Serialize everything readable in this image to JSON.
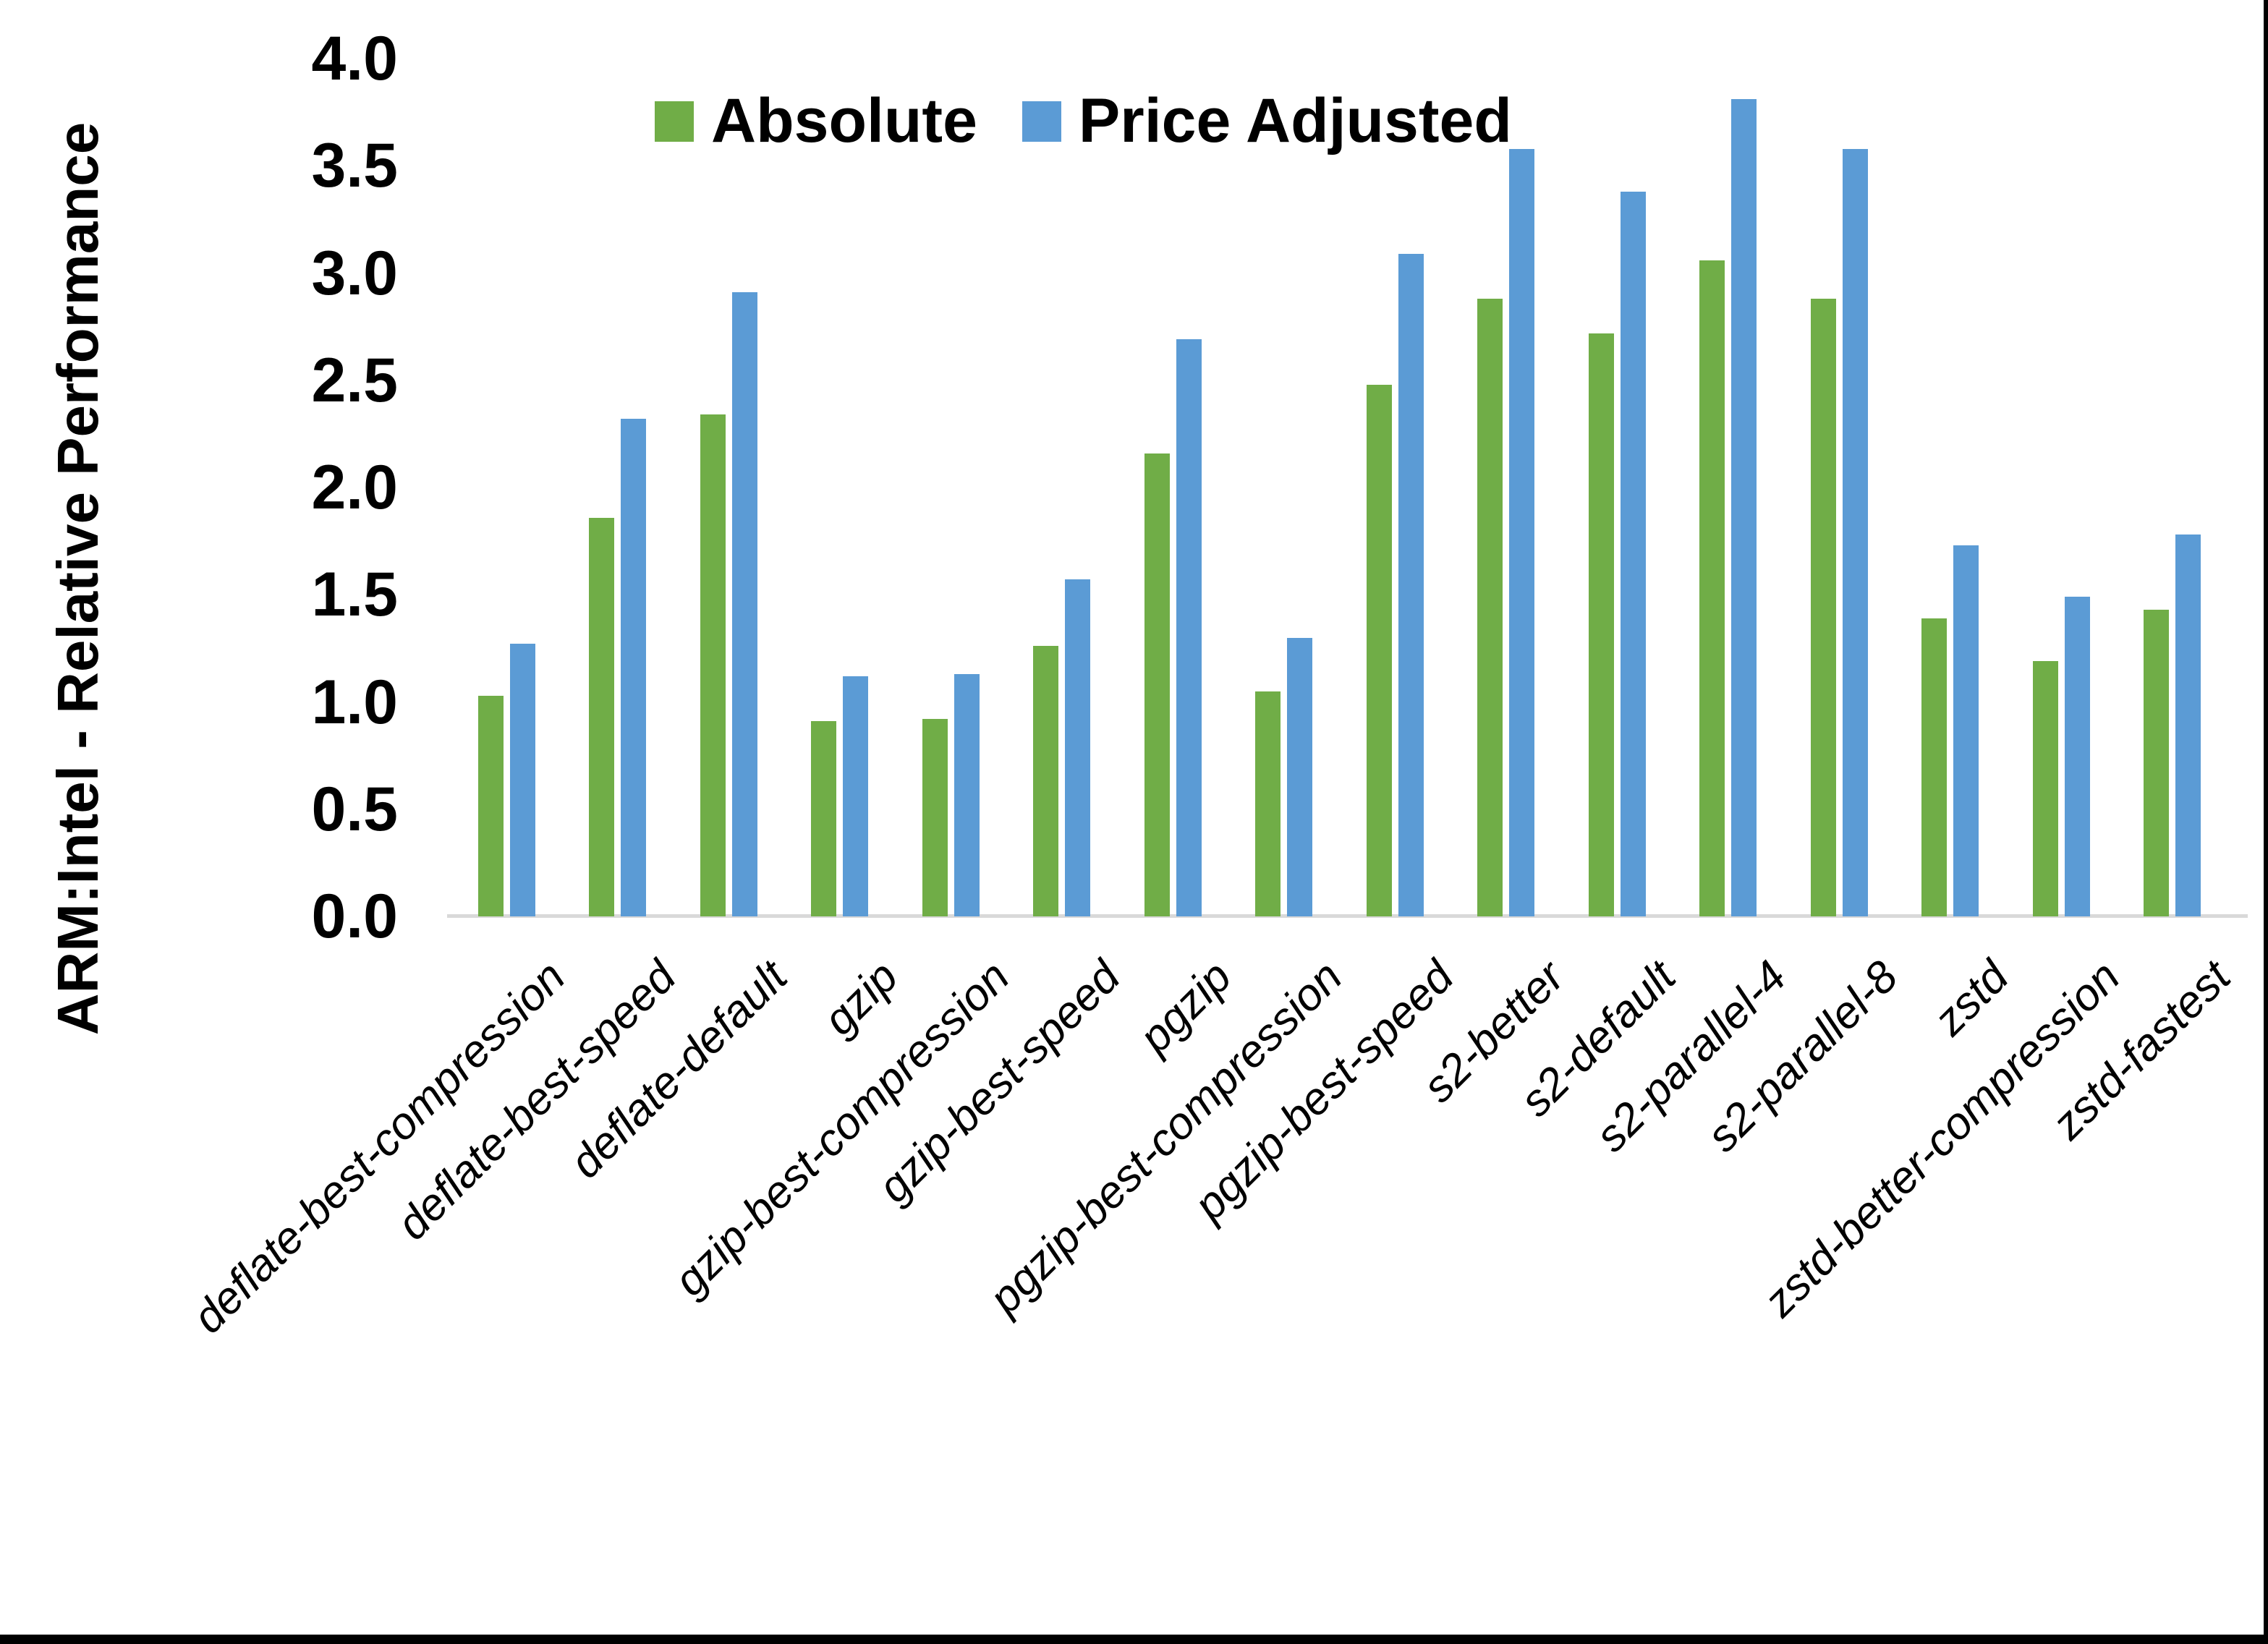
{
  "figure": {
    "background": "#ffffff",
    "border_color": "#000000",
    "text_color": "#000000"
  },
  "chart_data": {
    "type": "bar",
    "title": "",
    "xlabel": "",
    "ylabel": "ARM:Intel - Relative Performance",
    "ylim": [
      0.0,
      4.0
    ],
    "y_tick_step": 0.5,
    "y_ticks": [
      "4.0",
      "3.5",
      "3.0",
      "2.5",
      "2.0",
      "1.5",
      "1.0",
      "0.5",
      "0.0"
    ],
    "grid": "off",
    "legend_position": "top-center",
    "axis_line_color": "#D9D9D9",
    "categories": [
      "deflate-best-compression",
      "deflate-best-speed",
      "deflate-default",
      "gzip",
      "gzip-best-compression",
      "gzip-best-speed",
      "pgzip",
      "pgzip-best-compression",
      "pgzip-best-speed",
      "s2-better",
      "s2-default",
      "s2-parallel-4",
      "s2-parallel-8",
      "zstd",
      "zstd-better-compression",
      "zstd-fastest"
    ],
    "series": [
      {
        "name": "Absolute",
        "color": "#70AD47",
        "values": [
          1.03,
          1.86,
          2.34,
          0.91,
          0.92,
          1.26,
          2.16,
          1.05,
          2.48,
          2.88,
          2.72,
          3.06,
          2.88,
          1.39,
          1.19,
          1.43
        ]
      },
      {
        "name": "Price Adjusted",
        "color": "#5B9BD5",
        "values": [
          1.27,
          2.32,
          2.91,
          1.12,
          1.13,
          1.57,
          2.69,
          1.3,
          3.09,
          3.58,
          3.38,
          3.81,
          3.58,
          1.73,
          1.49,
          1.78
        ]
      }
    ]
  }
}
